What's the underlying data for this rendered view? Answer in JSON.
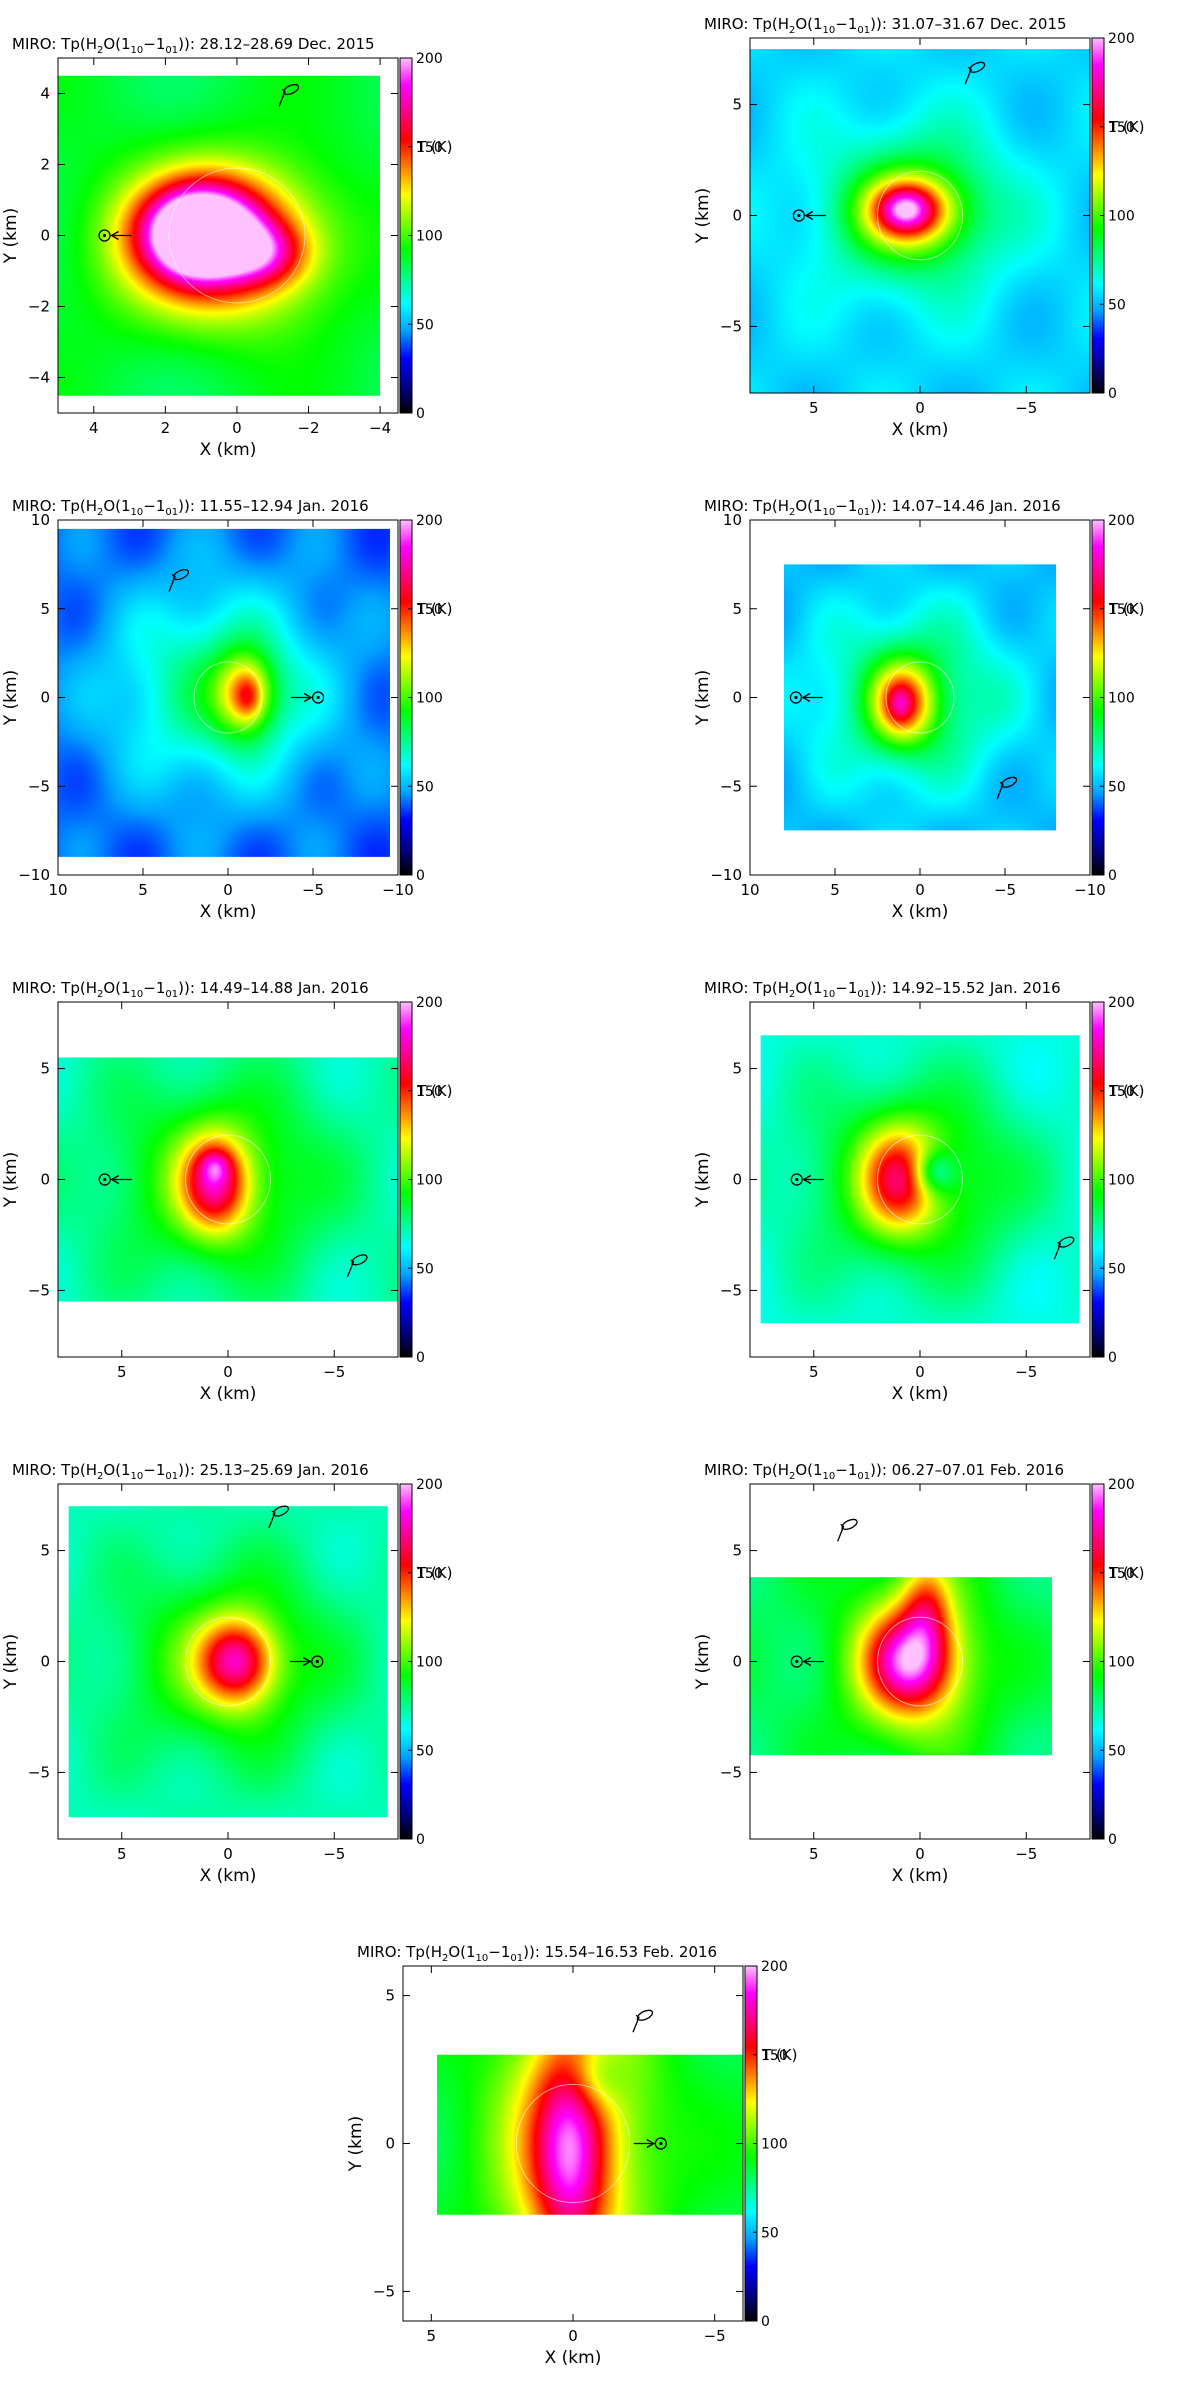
{
  "figure": {
    "colorbar": {
      "label": "T (K)",
      "range": [
        0,
        200
      ],
      "ticks": [
        0,
        50,
        100,
        150,
        200
      ],
      "colors": [
        "#000000",
        "#00008b",
        "#0000ff",
        "#00a0ff",
        "#00ffff",
        "#00ff80",
        "#00ff00",
        "#80ff00",
        "#ffff00",
        "#ff8000",
        "#ff0000",
        "#ff0080",
        "#ff00ff",
        "#ffc0ff"
      ]
    },
    "axes": {
      "xlabel": "X (km)",
      "ylabel": "Y (km)"
    }
  },
  "chart_data": [
    {
      "type": "heatmap",
      "title_prefix": "MIRO: Tp(H",
      "title_sub2": "2",
      "title_mid": "O(1",
      "title_sub10": "10",
      "title_dash": "−1",
      "title_sub01": "01",
      "title_suffix": ")): 28.12–28.69 Dec. 2015",
      "xlim": [
        5,
        -4.5
      ],
      "ylim": [
        -5,
        5
      ],
      "xticks": [
        "4",
        "2",
        "0",
        "−2",
        "−4"
      ],
      "xtick_values": [
        4,
        2,
        0,
        -2,
        -4
      ],
      "yticks": [
        "−4",
        "−2",
        "0",
        "2",
        "4"
      ],
      "ytick_values": [
        -4,
        -2,
        0,
        2,
        4
      ],
      "map_extent": {
        "x": [
          5,
          -4
        ],
        "y": [
          -4.5,
          4.5
        ]
      },
      "background_T": 85,
      "blobs": [
        {
          "x": 0.5,
          "y": -0.2,
          "sx": 2.0,
          "sy": 1.5,
          "T": 80
        },
        {
          "x": 1.0,
          "y": 0.1,
          "sx": 1.1,
          "sy": 0.9,
          "T": 115
        },
        {
          "x": 1.2,
          "y": 0.0,
          "sx": 0.5,
          "sy": 0.5,
          "T": 45
        },
        {
          "x": -0.8,
          "y": -0.5,
          "sx": 0.8,
          "sy": 0.6,
          "T": 40
        }
      ],
      "nucleus_circle": {
        "x": 0,
        "y": 0,
        "r": 1.9
      },
      "sun_marker": {
        "x": 3.7,
        "y": 0,
        "arrow": "right"
      },
      "rotation_marker": {
        "x": -1.4,
        "y": 4.0
      }
    },
    {
      "type": "heatmap",
      "title_prefix": "MIRO: Tp(H",
      "title_sub2": "2",
      "title_mid": "O(1",
      "title_sub10": "10",
      "title_dash": "−1",
      "title_sub01": "01",
      "title_suffix": ")): 31.07–31.67 Dec. 2015",
      "xlim": [
        8,
        -8
      ],
      "ylim": [
        -8,
        8
      ],
      "xticks": [
        "5",
        "0",
        "−5"
      ],
      "xtick_values": [
        5,
        0,
        -5
      ],
      "yticks": [
        "−5",
        "0",
        "5"
      ],
      "ytick_values": [
        -5,
        0,
        5
      ],
      "map_extent": {
        "x": [
          8,
          -8
        ],
        "y": [
          -8,
          7.5
        ]
      },
      "background_T": 55,
      "blobs": [
        {
          "x": 0.3,
          "y": 0.2,
          "sx": 3.0,
          "sy": 2.5,
          "T": 40
        },
        {
          "x": 0.5,
          "y": 0.2,
          "sx": 1.5,
          "sy": 1.1,
          "T": 75
        },
        {
          "x": 0.7,
          "y": 0.3,
          "sx": 0.8,
          "sy": 0.6,
          "T": 35
        }
      ],
      "nucleus_circle": {
        "x": 0,
        "y": 0,
        "r": 2.0
      },
      "sun_marker": {
        "x": 5.7,
        "y": 0,
        "arrow": "right"
      },
      "rotation_marker": {
        "x": -2.5,
        "y": 6.5
      }
    },
    {
      "type": "heatmap",
      "title_prefix": "MIRO: Tp(H",
      "title_sub2": "2",
      "title_mid": "O(1",
      "title_sub10": "10",
      "title_dash": "−1",
      "title_sub01": "01",
      "title_suffix": ")): 11.55–12.94 Jan. 2016",
      "xlim": [
        10,
        -10
      ],
      "ylim": [
        -10,
        10
      ],
      "xticks": [
        "10",
        "5",
        "0",
        "−5",
        "−10"
      ],
      "xtick_values": [
        10,
        5,
        0,
        -5,
        -10
      ],
      "yticks": [
        "−10",
        "−5",
        "0",
        "5",
        "10"
      ],
      "ytick_values": [
        -10,
        -5,
        0,
        5,
        10
      ],
      "map_extent": {
        "x": [
          10,
          -9.5
        ],
        "y": [
          -9,
          9.5
        ]
      },
      "background_T": 40,
      "blobs": [
        {
          "x": 0.5,
          "y": 0.5,
          "sx": 4.5,
          "sy": 4.0,
          "T": 40
        },
        {
          "x": -1.0,
          "y": 0.2,
          "sx": 1.2,
          "sy": 1.6,
          "T": 65
        },
        {
          "x": -1.2,
          "y": 0.0,
          "sx": 0.5,
          "sy": 0.8,
          "T": 20
        }
      ],
      "nucleus_circle": {
        "x": 0,
        "y": 0,
        "r": 2.0
      },
      "sun_marker": {
        "x": -5.3,
        "y": 0,
        "arrow": "left"
      },
      "rotation_marker": {
        "x": 3.0,
        "y": 6.7
      }
    },
    {
      "type": "heatmap",
      "title_prefix": "MIRO: Tp(H",
      "title_sub2": "2",
      "title_mid": "O(1",
      "title_sub10": "10",
      "title_dash": "−1",
      "title_sub01": "01",
      "title_suffix": ")): 14.07–14.46 Jan. 2016",
      "xlim": [
        10,
        -10
      ],
      "ylim": [
        -10,
        10
      ],
      "xticks": [
        "10",
        "5",
        "0",
        "−5",
        "−10"
      ],
      "xtick_values": [
        10,
        5,
        0,
        -5,
        -10
      ],
      "yticks": [
        "−10",
        "−5",
        "0",
        "5",
        "10"
      ],
      "ytick_values": [
        -10,
        -5,
        0,
        5,
        10
      ],
      "map_extent": {
        "x": [
          8,
          -8
        ],
        "y": [
          -7.5,
          7.5
        ]
      },
      "background_T": 50,
      "blobs": [
        {
          "x": 0.5,
          "y": 0.0,
          "sx": 4.0,
          "sy": 3.5,
          "T": 35
        },
        {
          "x": 1.0,
          "y": -0.3,
          "sx": 1.3,
          "sy": 1.6,
          "T": 70
        },
        {
          "x": 1.2,
          "y": -0.4,
          "sx": 0.5,
          "sy": 0.7,
          "T": 20
        }
      ],
      "nucleus_circle": {
        "x": 0,
        "y": 0,
        "r": 2.0
      },
      "sun_marker": {
        "x": 7.3,
        "y": 0,
        "arrow": "right"
      },
      "rotation_marker": {
        "x": -5.0,
        "y": -5.0
      }
    },
    {
      "type": "heatmap",
      "title_prefix": "MIRO: Tp(H",
      "title_sub2": "2",
      "title_mid": "O(1",
      "title_sub10": "10",
      "title_dash": "−1",
      "title_sub01": "01",
      "title_suffix": ")): 14.49–14.88 Jan. 2016",
      "xlim": [
        8,
        -8
      ],
      "ylim": [
        -8,
        8
      ],
      "xticks": [
        "5",
        "0",
        "−5"
      ],
      "xtick_values": [
        5,
        0,
        -5
      ],
      "yticks": [
        "−5",
        "0",
        "5"
      ],
      "ytick_values": [
        -5,
        0,
        5
      ],
      "map_extent": {
        "x": [
          8,
          -8
        ],
        "y": [
          -5.5,
          5.5
        ]
      },
      "background_T": 70,
      "blobs": [
        {
          "x": 0.5,
          "y": 0.0,
          "sx": 3.5,
          "sy": 3.0,
          "T": 35
        },
        {
          "x": 0.6,
          "y": -0.2,
          "sx": 1.1,
          "sy": 1.5,
          "T": 70
        },
        {
          "x": 0.6,
          "y": 0.6,
          "sx": 0.5,
          "sy": 0.5,
          "T": 25
        }
      ],
      "nucleus_circle": {
        "x": 0,
        "y": 0,
        "r": 2.0
      },
      "sun_marker": {
        "x": 5.8,
        "y": 0,
        "arrow": "right"
      },
      "rotation_marker": {
        "x": -6.0,
        "y": -3.8
      }
    },
    {
      "type": "heatmap",
      "title_prefix": "MIRO: Tp(H",
      "title_sub2": "2",
      "title_mid": "O(1",
      "title_sub10": "10",
      "title_dash": "−1",
      "title_sub01": "01",
      "title_suffix": ")): 14.92–15.52 Jan. 2016",
      "xlim": [
        8,
        -8
      ],
      "ylim": [
        -8,
        8
      ],
      "xticks": [
        "5",
        "0",
        "−5"
      ],
      "xtick_values": [
        5,
        0,
        -5
      ],
      "yticks": [
        "−5",
        "0",
        "5"
      ],
      "ytick_values": [
        -5,
        0,
        5
      ],
      "map_extent": {
        "x": [
          7.5,
          -7.5
        ],
        "y": [
          -6.5,
          6.5
        ]
      },
      "background_T": 65,
      "blobs": [
        {
          "x": 0.3,
          "y": 0.0,
          "sx": 3.5,
          "sy": 3.0,
          "T": 40
        },
        {
          "x": 1.0,
          "y": 0.0,
          "sx": 1.2,
          "sy": 1.6,
          "T": 60
        },
        {
          "x": -0.6,
          "y": 0.3,
          "sx": 0.7,
          "sy": 0.7,
          "T": -40
        }
      ],
      "nucleus_circle": {
        "x": 0,
        "y": 0,
        "r": 2.0
      },
      "sun_marker": {
        "x": 5.8,
        "y": 0,
        "arrow": "right"
      },
      "rotation_marker": {
        "x": -6.7,
        "y": -3.0
      }
    },
    {
      "type": "heatmap",
      "title_prefix": "MIRO: Tp(H",
      "title_sub2": "2",
      "title_mid": "O(1",
      "title_sub10": "10",
      "title_dash": "−1",
      "title_sub01": "01",
      "title_suffix": ")): 25.13–25.69 Jan. 2016",
      "xlim": [
        8,
        -8
      ],
      "ylim": [
        -8,
        8
      ],
      "xticks": [
        "5",
        "0",
        "−5"
      ],
      "xtick_values": [
        5,
        0,
        -5
      ],
      "yticks": [
        "−5",
        "0",
        "5"
      ],
      "ytick_values": [
        -5,
        0,
        5
      ],
      "map_extent": {
        "x": [
          7.5,
          -7.5
        ],
        "y": [
          -7,
          7
        ]
      },
      "background_T": 70,
      "blobs": [
        {
          "x": 0.0,
          "y": 0.0,
          "sx": 3.5,
          "sy": 3.0,
          "T": 35
        },
        {
          "x": -0.4,
          "y": 0.0,
          "sx": 1.2,
          "sy": 1.3,
          "T": 75
        }
      ],
      "nucleus_circle": {
        "x": 0,
        "y": 0,
        "r": 2.0
      },
      "sun_marker": {
        "x": -4.2,
        "y": 0,
        "arrow": "left"
      },
      "rotation_marker": {
        "x": -2.3,
        "y": 6.6
      }
    },
    {
      "type": "heatmap",
      "title_prefix": "MIRO: Tp(H",
      "title_sub2": "2",
      "title_mid": "O(1",
      "title_sub10": "10",
      "title_dash": "−1",
      "title_sub01": "01",
      "title_suffix": ")): 06.27–07.01 Feb. 2016",
      "xlim": [
        8,
        -8
      ],
      "ylim": [
        -8,
        8
      ],
      "xticks": [
        "5",
        "0",
        "−5"
      ],
      "xtick_values": [
        5,
        0,
        -5
      ],
      "yticks": [
        "−5",
        "0",
        "5"
      ],
      "ytick_values": [
        -5,
        0,
        5
      ],
      "map_extent": {
        "x": [
          8,
          -6.2
        ],
        "y": [
          -4.2,
          3.8
        ]
      },
      "background_T": 80,
      "blobs": [
        {
          "x": 0.3,
          "y": 0.0,
          "sx": 2.5,
          "sy": 3.0,
          "T": 40
        },
        {
          "x": 0.5,
          "y": 0.0,
          "sx": 1.4,
          "sy": 1.5,
          "T": 75
        },
        {
          "x": -0.3,
          "y": 2.5,
          "sx": 0.8,
          "sy": 1.5,
          "T": 40
        }
      ],
      "nucleus_circle": {
        "x": 0,
        "y": 0,
        "r": 2.0
      },
      "sun_marker": {
        "x": 5.8,
        "y": 0,
        "arrow": "right"
      },
      "rotation_marker": {
        "x": 3.5,
        "y": 6.0
      }
    },
    {
      "type": "heatmap",
      "title_prefix": "MIRO: Tp(H",
      "title_sub2": "2",
      "title_mid": "O(1",
      "title_sub10": "10",
      "title_dash": "−1",
      "title_sub01": "01",
      "title_suffix": ")): 15.54–16.53 Feb. 2016",
      "xlim": [
        6,
        -6
      ],
      "ylim": [
        -6,
        6
      ],
      "xticks": [
        "5",
        "0",
        "−5"
      ],
      "xtick_values": [
        5,
        0,
        -5
      ],
      "yticks": [
        "−5",
        "0",
        "5"
      ],
      "ytick_values": [
        -5,
        0,
        5
      ],
      "map_extent": {
        "x": [
          4.8,
          -6
        ],
        "y": [
          -2.4,
          3
        ]
      },
      "background_T": 85,
      "blobs": [
        {
          "x": 0.0,
          "y": 0.0,
          "sx": 2.0,
          "sy": 4.0,
          "T": 50
        },
        {
          "x": 0.1,
          "y": -0.3,
          "sx": 0.9,
          "sy": 2.5,
          "T": 60
        },
        {
          "x": -0.8,
          "y": 2.2,
          "sx": 0.7,
          "sy": 0.8,
          "T": -25
        }
      ],
      "nucleus_circle": {
        "x": 0,
        "y": 0,
        "r": 2.0
      },
      "sun_marker": {
        "x": -3.1,
        "y": 0,
        "arrow": "left"
      },
      "rotation_marker": {
        "x": -2.4,
        "y": 4.2
      }
    }
  ]
}
